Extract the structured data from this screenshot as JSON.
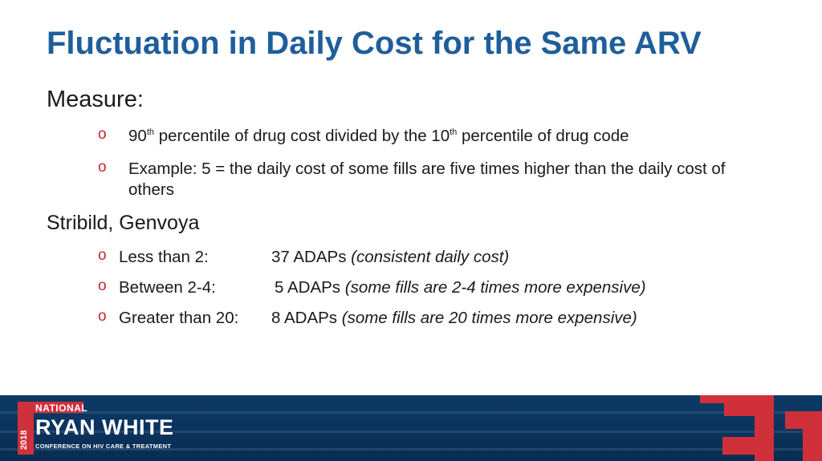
{
  "slide": {
    "title": "Fluctuation in Daily Cost for the Same ARV",
    "measure_heading": "Measure:",
    "measure_bullets": [
      {
        "pre": "90",
        "sup1": "th",
        "mid": " percentile of drug cost divided by the 10",
        "sup2": "th",
        "post": " percentile of drug code"
      },
      {
        "text": "Example: 5 = the daily cost of some fills are five times higher than the daily cost of others"
      }
    ],
    "drugs_heading": "Stribild, Genvoya",
    "drug_rows": [
      {
        "label": "Less than 2:",
        "count": "37 ADAPs",
        "note": "(consistent daily cost)"
      },
      {
        "label": "Between 2-4:",
        "count": "5 ADAPs",
        "note": "(some fills are 2-4 times more expensive)"
      },
      {
        "label": "Greater than 20:",
        "count": "8 ADAPs",
        "note": "(some fills are 20 times more expensive)"
      }
    ],
    "bullet_glyph": "o"
  },
  "footer": {
    "year": "2018",
    "national": "NATIONAL",
    "name": "RYAN WHITE",
    "subtitle": "CONFERENCE ON HIV CARE & TREATMENT"
  },
  "colors": {
    "title": "#1f5e9b",
    "bullet": "#c0282f",
    "footer_bg": "#0a3560",
    "accent_red": "#d0303a"
  }
}
